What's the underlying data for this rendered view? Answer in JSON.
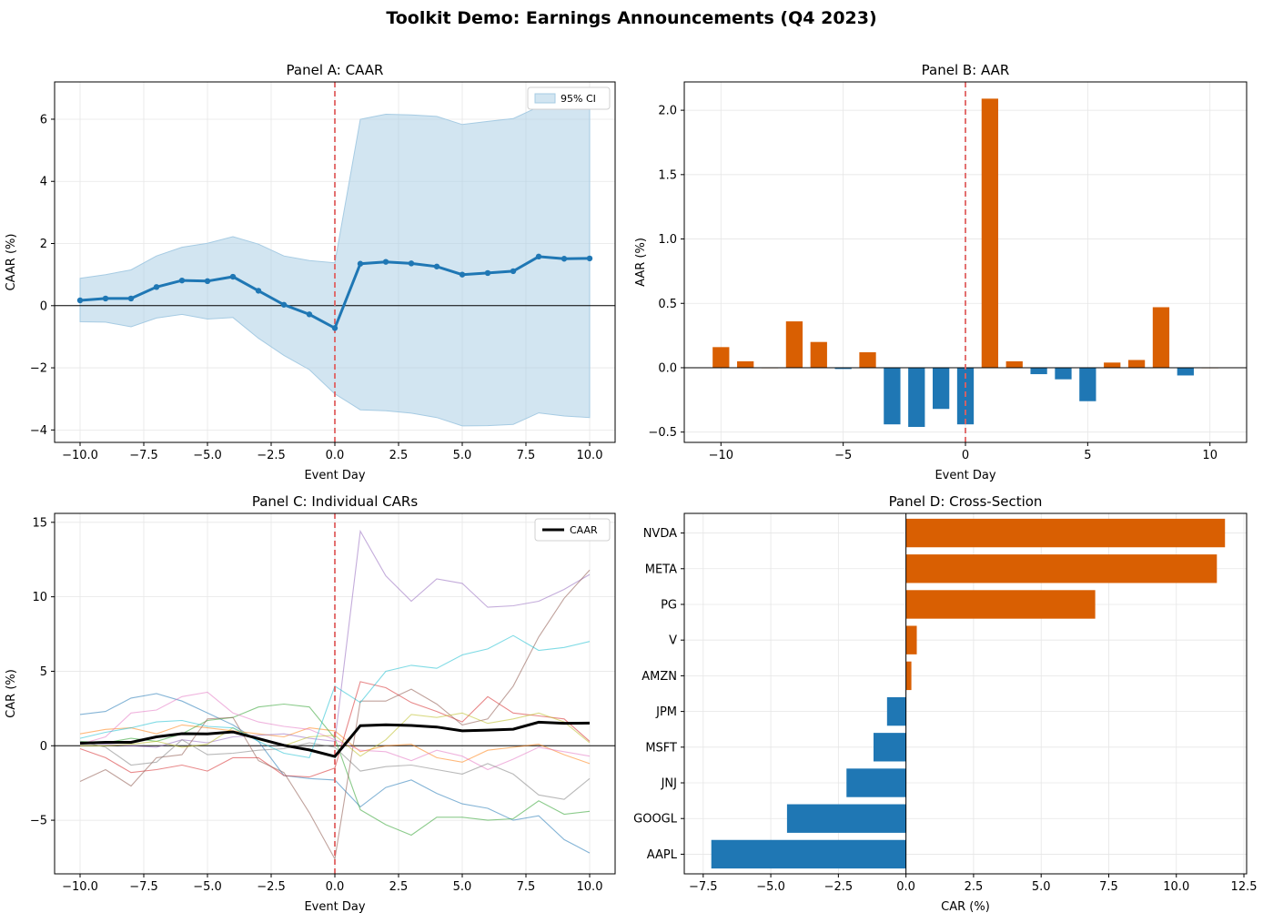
{
  "figure": {
    "title": "Toolkit Demo: Earnings Announcements (Q4 2023)"
  },
  "colors": {
    "pos": "#d95f02",
    "neg": "#1f77b4",
    "line": "#1f77b4",
    "ci": "#a6cbe3",
    "event": "#e06060",
    "caar": "#000000"
  },
  "chart_data": [
    {
      "id": "A",
      "type": "line",
      "title": "Panel A: CAAR",
      "xlabel": "Event Day",
      "ylabel": "CAAR (%)",
      "xlim": [
        -11,
        11
      ],
      "ylim": [
        -4.4,
        7.2
      ],
      "xticks": [
        -10,
        -7.5,
        -5,
        -2.5,
        0,
        2.5,
        5,
        7.5,
        10
      ],
      "xtick_labels": [
        "−10.0",
        "−7.5",
        "−5.0",
        "−2.5",
        "0.0",
        "2.5",
        "5.0",
        "7.5",
        "10.0"
      ],
      "yticks": [
        -4,
        -2,
        0,
        2,
        4,
        6
      ],
      "ytick_labels": [
        "−4",
        "−2",
        "0",
        "2",
        "4",
        "6"
      ],
      "grid": true,
      "legend": {
        "position": "top-right",
        "entries": [
          "95% CI"
        ]
      },
      "x": [
        -10,
        -9,
        -8,
        -7,
        -6,
        -5,
        -4,
        -3,
        -2,
        -1,
        0,
        1,
        2,
        3,
        4,
        5,
        6,
        7,
        8,
        9,
        10
      ],
      "caar": [
        0.17,
        0.23,
        0.23,
        0.6,
        0.81,
        0.79,
        0.93,
        0.48,
        0.03,
        -0.28,
        -0.72,
        1.35,
        1.41,
        1.36,
        1.26,
        1.0,
        1.05,
        1.11,
        1.58,
        1.51,
        1.52
      ],
      "ci_upper": [
        0.88,
        1.0,
        1.15,
        1.6,
        1.88,
        2.01,
        2.22,
        1.98,
        1.6,
        1.45,
        1.38,
        6.0,
        6.16,
        6.14,
        6.09,
        5.83,
        5.93,
        6.02,
        6.4,
        6.53,
        6.6
      ],
      "ci_lower": [
        -0.52,
        -0.53,
        -0.68,
        -0.4,
        -0.28,
        -0.43,
        -0.38,
        -1.05,
        -1.6,
        -2.06,
        -2.84,
        -3.35,
        -3.38,
        -3.46,
        -3.6,
        -3.87,
        -3.86,
        -3.82,
        -3.45,
        -3.55,
        -3.6
      ]
    },
    {
      "id": "B",
      "type": "bar",
      "title": "Panel B: AAR",
      "xlabel": "Event Day",
      "ylabel": "AAR (%)",
      "xlim": [
        -11.5,
        11.5
      ],
      "ylim": [
        -0.58,
        2.22
      ],
      "xticks": [
        -10,
        -5,
        0,
        5,
        10
      ],
      "xtick_labels": [
        "−10",
        "−5",
        "0",
        "5",
        "10"
      ],
      "yticks": [
        -0.5,
        0,
        0.5,
        1.0,
        1.5,
        2.0
      ],
      "ytick_labels": [
        "−0.5",
        "0.0",
        "0.5",
        "1.0",
        "1.5",
        "2.0"
      ],
      "grid": true,
      "x": [
        -10,
        -9,
        -8,
        -7,
        -6,
        -5,
        -4,
        -3,
        -2,
        -1,
        0,
        1,
        2,
        3,
        4,
        5,
        6,
        7,
        8,
        9,
        10
      ],
      "values": [
        0.16,
        0.05,
        0.0,
        0.36,
        0.2,
        -0.01,
        0.12,
        -0.44,
        -0.46,
        -0.32,
        -0.44,
        2.09,
        0.05,
        -0.05,
        -0.09,
        -0.26,
        0.04,
        0.06,
        0.47,
        -0.06,
        0.0
      ]
    },
    {
      "id": "C",
      "type": "line",
      "title": "Panel C: Individual CARs",
      "xlabel": "Event Day",
      "ylabel": "CAR (%)",
      "xlim": [
        -11,
        11
      ],
      "ylim": [
        -8.6,
        15.6
      ],
      "xticks": [
        -10,
        -7.5,
        -5,
        -2.5,
        0,
        2.5,
        5,
        7.5,
        10
      ],
      "xtick_labels": [
        "−10.0",
        "−7.5",
        "−5.0",
        "−2.5",
        "0.0",
        "2.5",
        "5.0",
        "7.5",
        "10.0"
      ],
      "yticks": [
        -5,
        0,
        5,
        10,
        15
      ],
      "ytick_labels": [
        "−5",
        "0",
        "5",
        "10",
        "15"
      ],
      "grid": true,
      "legend": {
        "position": "top-right",
        "entries": [
          "CAAR"
        ]
      },
      "x": [
        -10,
        -9,
        -8,
        -7,
        -6,
        -5,
        -4,
        -3,
        -2,
        -1,
        0,
        1,
        2,
        3,
        4,
        5,
        6,
        7,
        8,
        9,
        10
      ],
      "series": [
        {
          "color": "#1f77b4",
          "values": [
            2.1,
            2.3,
            3.2,
            3.5,
            3.0,
            2.2,
            1.4,
            0.3,
            -2.0,
            -2.2,
            -2.3,
            -4.1,
            -2.8,
            -2.3,
            -3.2,
            -3.9,
            -4.2,
            -5.0,
            -4.7,
            -6.3,
            -7.2
          ]
        },
        {
          "color": "#ff7f0e",
          "values": [
            0.8,
            1.1,
            1.2,
            0.8,
            1.4,
            1.2,
            1.0,
            0.8,
            0.6,
            1.2,
            1.0,
            -0.4,
            0.0,
            0.1,
            -0.8,
            -1.1,
            -0.3,
            -0.1,
            0.1,
            -0.6,
            -1.2
          ]
        },
        {
          "color": "#2ca02c",
          "values": [
            0.3,
            0.2,
            0.5,
            0.3,
            0.8,
            1.7,
            1.9,
            2.6,
            2.8,
            2.6,
            0.5,
            -4.3,
            -5.3,
            -6.0,
            -4.8,
            -4.8,
            -5.0,
            -4.9,
            -3.7,
            -4.6,
            -4.4
          ]
        },
        {
          "color": "#d62728",
          "values": [
            -0.2,
            -0.8,
            -1.8,
            -1.6,
            -1.3,
            -1.7,
            -0.8,
            -0.8,
            -2.0,
            -2.1,
            -1.5,
            4.3,
            3.9,
            2.9,
            2.3,
            1.6,
            3.3,
            2.2,
            2.0,
            1.8,
            0.3
          ]
        },
        {
          "color": "#9467bd",
          "values": [
            0.2,
            0.1,
            0.0,
            -0.1,
            0.4,
            0.2,
            0.6,
            0.7,
            0.8,
            0.5,
            0.3,
            14.4,
            11.4,
            9.7,
            11.2,
            10.9,
            9.3,
            9.4,
            9.7,
            10.5,
            11.5
          ]
        },
        {
          "color": "#8c564b",
          "values": [
            -2.4,
            -1.6,
            -2.7,
            -0.8,
            -0.6,
            1.8,
            1.9,
            -1.0,
            -1.8,
            -4.5,
            -7.6,
            3.0,
            3.0,
            3.8,
            2.8,
            1.4,
            1.8,
            4.0,
            7.3,
            9.9,
            11.8
          ]
        },
        {
          "color": "#e377c2",
          "values": [
            0.1,
            0.6,
            2.2,
            2.4,
            3.3,
            3.6,
            2.2,
            1.6,
            1.3,
            1.1,
            0.4,
            -0.3,
            -0.4,
            -1.0,
            -0.3,
            -0.7,
            -1.6,
            -0.9,
            -0.1,
            -0.4,
            -0.7
          ]
        },
        {
          "color": "#7f7f7f",
          "values": [
            0.3,
            -0.1,
            -1.3,
            -1.1,
            0.4,
            -0.6,
            -0.5,
            -0.3,
            -0.2,
            0.2,
            -0.1,
            -1.7,
            -1.4,
            -1.3,
            -1.6,
            -1.9,
            -1.2,
            -1.9,
            -3.3,
            -3.6,
            -2.2
          ]
        },
        {
          "color": "#bcbd22",
          "values": [
            0.0,
            0.0,
            0.1,
            0.3,
            -0.1,
            0.1,
            1.2,
            0.4,
            0.0,
            0.6,
            0.7,
            -0.7,
            0.4,
            2.1,
            1.9,
            2.2,
            1.5,
            1.8,
            2.2,
            1.6,
            0.2
          ]
        },
        {
          "color": "#17becf",
          "values": [
            0.5,
            0.9,
            1.2,
            1.6,
            1.7,
            1.3,
            1.2,
            0.3,
            -0.5,
            -0.8,
            4.0,
            2.9,
            5.0,
            5.4,
            5.2,
            6.1,
            6.5,
            7.4,
            6.4,
            6.6,
            7.0
          ]
        }
      ],
      "caar": [
        0.17,
        0.23,
        0.23,
        0.6,
        0.81,
        0.79,
        0.93,
        0.48,
        0.03,
        -0.28,
        -0.72,
        1.35,
        1.41,
        1.36,
        1.26,
        1.0,
        1.05,
        1.11,
        1.58,
        1.51,
        1.52
      ]
    },
    {
      "id": "D",
      "type": "bar",
      "orientation": "horizontal",
      "title": "Panel D: Cross-Section",
      "xlabel": "CAR (%)",
      "xlim": [
        -8.2,
        12.6
      ],
      "xticks": [
        -7.5,
        -5,
        -2.5,
        0,
        2.5,
        5,
        7.5,
        10,
        12.5
      ],
      "xtick_labels": [
        "−7.5",
        "−5.0",
        "−2.5",
        "0.0",
        "2.5",
        "5.0",
        "7.5",
        "10.0",
        "12.5"
      ],
      "grid": true,
      "categories": [
        "AAPL",
        "GOOGL",
        "JNJ",
        "MSFT",
        "JPM",
        "AMZN",
        "V",
        "PG",
        "META",
        "NVDA"
      ],
      "values": [
        -7.2,
        -4.4,
        -2.2,
        -1.2,
        -0.7,
        0.2,
        0.4,
        7.0,
        11.5,
        11.8
      ]
    }
  ]
}
